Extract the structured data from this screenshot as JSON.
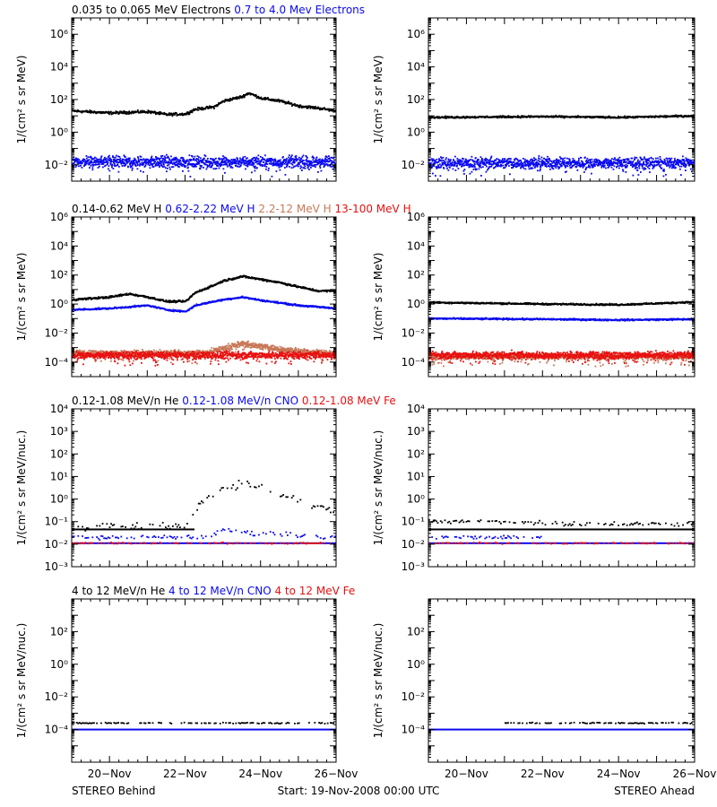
{
  "colors": {
    "black": "#000000",
    "blue": "#0a0af0",
    "tan": "#c87858",
    "red": "#e81010"
  },
  "footer": {
    "left": "STEREO Behind",
    "center": "Start: 19-Nov-2008 00:00 UTC",
    "right": "STEREO Ahead"
  },
  "chart_data": [
    {
      "type": "scatter",
      "panel": "electrons",
      "spacecraft": "STEREO Behind",
      "ylabel": "1/(cm² s sr MeV)",
      "yscale": "log",
      "ylim": [
        0.001,
        10000000
      ],
      "yticks": [
        {
          "v": 0.01,
          "label": "10⁻²"
        },
        {
          "v": 1,
          "label": "10⁰"
        },
        {
          "v": 100,
          "label": "10²"
        },
        {
          "v": 10000,
          "label": "10⁴"
        },
        {
          "v": 1000000,
          "label": "10⁶"
        }
      ],
      "xlim": [
        "2008-11-19",
        "2008-11-26"
      ],
      "legend": [
        {
          "text": "0.035 to 0.065 MeV Electrons",
          "color": "#000000"
        },
        {
          "text": "0.7 to 4.0 Mev Electrons",
          "color": "#0a0af0"
        }
      ],
      "series": [
        {
          "color": "#000000",
          "style": "dense",
          "spread": 0.12,
          "points": [
            [
              "2008-11-19",
              20
            ],
            [
              "2008-11-20",
              15
            ],
            [
              "2008-11-21",
              18
            ],
            [
              "2008-11-21 12:00",
              12
            ],
            [
              "2008-11-22",
              13
            ],
            [
              "2008-11-22 06:00",
              25
            ],
            [
              "2008-11-22 18:00",
              35
            ],
            [
              "2008-11-23",
              80
            ],
            [
              "2008-11-23 12:00",
              150
            ],
            [
              "2008-11-23 16:00",
              250
            ],
            [
              "2008-11-24",
              120
            ],
            [
              "2008-11-24 12:00",
              80
            ],
            [
              "2008-11-25",
              40
            ],
            [
              "2008-11-25 12:00",
              30
            ],
            [
              "2008-11-26",
              20
            ]
          ]
        },
        {
          "color": "#0a0af0",
          "style": "noisy",
          "spread": 0.5,
          "points": [
            [
              "2008-11-19",
              0.015
            ],
            [
              "2008-11-26",
              0.015
            ]
          ]
        }
      ]
    },
    {
      "type": "scatter",
      "panel": "electrons",
      "spacecraft": "STEREO Ahead",
      "ylabel": "1/(cm² s sr MeV)",
      "yscale": "log",
      "ylim": [
        0.001,
        10000000
      ],
      "yticks": [
        {
          "v": 0.01,
          "label": "10⁻²"
        },
        {
          "v": 1,
          "label": "10⁰"
        },
        {
          "v": 100,
          "label": "10²"
        },
        {
          "v": 10000,
          "label": "10⁴"
        },
        {
          "v": 1000000,
          "label": "10⁶"
        }
      ],
      "xlim": [
        "2008-11-19",
        "2008-11-26"
      ],
      "legend": [],
      "series": [
        {
          "color": "#000000",
          "style": "dense",
          "spread": 0.08,
          "points": [
            [
              "2008-11-19",
              8
            ],
            [
              "2008-11-22",
              9
            ],
            [
              "2008-11-24",
              8
            ],
            [
              "2008-11-26",
              10
            ]
          ]
        },
        {
          "color": "#0a0af0",
          "style": "noisy",
          "spread": 0.5,
          "points": [
            [
              "2008-11-19",
              0.013
            ],
            [
              "2008-11-26",
              0.013
            ]
          ]
        }
      ]
    },
    {
      "type": "scatter",
      "panel": "protons",
      "spacecraft": "STEREO Behind",
      "ylabel": "1/(cm² s sr MeV)",
      "yscale": "log",
      "ylim": [
        1e-05,
        1000000
      ],
      "yticks": [
        {
          "v": 0.0001,
          "label": "10⁻⁴"
        },
        {
          "v": 0.01,
          "label": "10⁻²"
        },
        {
          "v": 1,
          "label": "10⁰"
        },
        {
          "v": 100,
          "label": "10²"
        },
        {
          "v": 10000,
          "label": "10⁴"
        },
        {
          "v": 1000000,
          "label": "10⁶"
        }
      ],
      "xlim": [
        "2008-11-19",
        "2008-11-26"
      ],
      "legend": [
        {
          "text": "0.14-0.62 MeV H",
          "color": "#000000"
        },
        {
          "text": "0.62-2.22 MeV H",
          "color": "#0a0af0"
        },
        {
          "text": "2.2-12 MeV H",
          "color": "#c87858"
        },
        {
          "text": "13-100 MeV H",
          "color": "#e81010"
        }
      ],
      "series": [
        {
          "color": "#000000",
          "style": "dense",
          "spread": 0.1,
          "points": [
            [
              "2008-11-19",
              2
            ],
            [
              "2008-11-20",
              3
            ],
            [
              "2008-11-20 12:00",
              5
            ],
            [
              "2008-11-21",
              3
            ],
            [
              "2008-11-21 12:00",
              1.5
            ],
            [
              "2008-11-22",
              1.5
            ],
            [
              "2008-11-22 06:00",
              6
            ],
            [
              "2008-11-22 18:00",
              20
            ],
            [
              "2008-11-23",
              40
            ],
            [
              "2008-11-23 12:00",
              80
            ],
            [
              "2008-11-24",
              50
            ],
            [
              "2008-11-24 12:00",
              30
            ],
            [
              "2008-11-25",
              15
            ],
            [
              "2008-11-25 12:00",
              8
            ],
            [
              "2008-11-26",
              8
            ]
          ]
        },
        {
          "color": "#0a0af0",
          "style": "dense",
          "spread": 0.08,
          "points": [
            [
              "2008-11-19",
              0.4
            ],
            [
              "2008-11-20",
              0.5
            ],
            [
              "2008-11-21",
              0.8
            ],
            [
              "2008-11-21 12:00",
              0.4
            ],
            [
              "2008-11-22",
              0.3
            ],
            [
              "2008-11-22 06:00",
              0.8
            ],
            [
              "2008-11-22 18:00",
              1.5
            ],
            [
              "2008-11-23",
              2
            ],
            [
              "2008-11-23 12:00",
              3
            ],
            [
              "2008-11-24",
              1.8
            ],
            [
              "2008-11-25",
              0.8
            ],
            [
              "2008-11-26",
              0.5
            ]
          ]
        },
        {
          "color": "#c87858",
          "style": "noisy",
          "spread": 0.3,
          "points": [
            [
              "2008-11-19",
              0.0004
            ],
            [
              "2008-11-22 12:00",
              0.0004
            ],
            [
              "2008-11-23",
              0.0009
            ],
            [
              "2008-11-23 12:00",
              0.0018
            ],
            [
              "2008-11-24",
              0.0012
            ],
            [
              "2008-11-24 12:00",
              0.0008
            ],
            [
              "2008-11-25",
              0.0005
            ],
            [
              "2008-11-26",
              0.0004
            ]
          ]
        },
        {
          "color": "#e81010",
          "style": "noisy",
          "spread": 0.35,
          "points": [
            [
              "2008-11-19",
              0.0003
            ],
            [
              "2008-11-26",
              0.0003
            ]
          ]
        }
      ]
    },
    {
      "type": "scatter",
      "panel": "protons",
      "spacecraft": "STEREO Ahead",
      "ylabel": "1/(cm² s sr MeV)",
      "yscale": "log",
      "ylim": [
        1e-05,
        1000000
      ],
      "yticks": [
        {
          "v": 0.0001,
          "label": "10⁻⁴"
        },
        {
          "v": 0.01,
          "label": "10⁻²"
        },
        {
          "v": 1,
          "label": "10⁰"
        },
        {
          "v": 100,
          "label": "10²"
        },
        {
          "v": 10000,
          "label": "10⁴"
        },
        {
          "v": 1000000,
          "label": "10⁶"
        }
      ],
      "xlim": [
        "2008-11-19",
        "2008-11-26"
      ],
      "legend": [],
      "series": [
        {
          "color": "#000000",
          "style": "dense",
          "spread": 0.08,
          "points": [
            [
              "2008-11-19",
              1.3
            ],
            [
              "2008-11-22",
              1
            ],
            [
              "2008-11-24",
              0.9
            ],
            [
              "2008-11-25",
              1.1
            ],
            [
              "2008-11-26",
              1.4
            ]
          ]
        },
        {
          "color": "#0a0af0",
          "style": "dense",
          "spread": 0.08,
          "points": [
            [
              "2008-11-19",
              0.1
            ],
            [
              "2008-11-22",
              0.09
            ],
            [
              "2008-11-24",
              0.08
            ],
            [
              "2008-11-26",
              0.09
            ]
          ]
        },
        {
          "color": "#c87858",
          "style": "noisy",
          "spread": 0.3,
          "points": [
            [
              "2008-11-19",
              0.00025
            ],
            [
              "2008-11-26",
              0.00025
            ]
          ]
        },
        {
          "color": "#e81010",
          "style": "noisy",
          "spread": 0.35,
          "points": [
            [
              "2008-11-19",
              0.0003
            ],
            [
              "2008-11-26",
              0.0003
            ]
          ]
        }
      ]
    },
    {
      "type": "scatter",
      "panel": "heavy-low",
      "spacecraft": "STEREO Behind",
      "ylabel": "1/(cm² s sr MeV/nuc.)",
      "yscale": "log",
      "ylim": [
        0.001,
        10000
      ],
      "yticks": [
        {
          "v": 0.001,
          "label": "10⁻³"
        },
        {
          "v": 0.01,
          "label": "10⁻²"
        },
        {
          "v": 0.1,
          "label": "10⁻¹"
        },
        {
          "v": 1,
          "label": "10⁰"
        },
        {
          "v": 10,
          "label": "10¹"
        },
        {
          "v": 100,
          "label": "10²"
        },
        {
          "v": 1000,
          "label": "10³"
        },
        {
          "v": 10000,
          "label": "10⁴"
        }
      ],
      "xlim": [
        "2008-11-19",
        "2008-11-26"
      ],
      "legend": [
        {
          "text": "0.12-1.08 MeV/n He",
          "color": "#000000"
        },
        {
          "text": "0.12-1.08 MeV/n CNO",
          "color": "#0a0af0"
        },
        {
          "text": "0.12-1.08 MeV Fe",
          "color": "#e81010"
        }
      ],
      "series": [
        {
          "color": "#000000",
          "style": "sparse",
          "spread": 0.25,
          "points": [
            [
              "2008-11-19",
              0.06
            ],
            [
              "2008-11-22",
              0.07
            ],
            [
              "2008-11-22 06:00",
              0.3
            ],
            [
              "2008-11-22 12:00",
              1.2
            ],
            [
              "2008-11-23",
              2.5
            ],
            [
              "2008-11-23 12:00",
              5
            ],
            [
              "2008-11-24",
              3
            ],
            [
              "2008-11-24 12:00",
              1.5
            ],
            [
              "2008-11-25",
              0.8
            ],
            [
              "2008-11-25 12:00",
              0.5
            ],
            [
              "2008-11-26",
              0.3
            ]
          ]
        },
        {
          "color": "#000000",
          "style": "flat",
          "points": [
            [
              "2008-11-19",
              0.045
            ],
            [
              "2008-11-22 06:00",
              0.045
            ]
          ]
        },
        {
          "color": "#0a0af0",
          "style": "sparse",
          "spread": 0.15,
          "points": [
            [
              "2008-11-19",
              0.02
            ],
            [
              "2008-11-22 12:00",
              0.02
            ],
            [
              "2008-11-23",
              0.04
            ],
            [
              "2008-11-24",
              0.03
            ],
            [
              "2008-11-26",
              0.02
            ]
          ]
        },
        {
          "color": "#0a0af0",
          "style": "flat",
          "points": [
            [
              "2008-11-19",
              0.011
            ],
            [
              "2008-11-26",
              0.011
            ]
          ]
        },
        {
          "color": "#e81010",
          "style": "sparse",
          "spread": 0.05,
          "points": [
            [
              "2008-11-19",
              0.011
            ],
            [
              "2008-11-26",
              0.011
            ]
          ]
        }
      ]
    },
    {
      "type": "scatter",
      "panel": "heavy-low",
      "spacecraft": "STEREO Ahead",
      "ylabel": "1/(cm² s sr MeV/nuc.)",
      "yscale": "log",
      "ylim": [
        0.001,
        10000
      ],
      "yticks": [
        {
          "v": 0.001,
          "label": "10⁻³"
        },
        {
          "v": 0.01,
          "label": "10⁻²"
        },
        {
          "v": 0.1,
          "label": "10⁻¹"
        },
        {
          "v": 1,
          "label": "10⁰"
        },
        {
          "v": 10,
          "label": "10¹"
        },
        {
          "v": 100,
          "label": "10²"
        },
        {
          "v": 1000,
          "label": "10³"
        },
        {
          "v": 10000,
          "label": "10⁴"
        }
      ],
      "xlim": [
        "2008-11-19",
        "2008-11-26"
      ],
      "legend": [],
      "series": [
        {
          "color": "#000000",
          "style": "sparse",
          "spread": 0.15,
          "points": [
            [
              "2008-11-19",
              0.1
            ],
            [
              "2008-11-21",
              0.1
            ],
            [
              "2008-11-23",
              0.08
            ],
            [
              "2008-11-26",
              0.08
            ]
          ]
        },
        {
          "color": "#000000",
          "style": "flat",
          "points": [
            [
              "2008-11-19",
              0.045
            ],
            [
              "2008-11-26",
              0.045
            ]
          ]
        },
        {
          "color": "#0a0af0",
          "style": "sparse",
          "spread": 0.1,
          "points": [
            [
              "2008-11-19",
              0.02
            ],
            [
              "2008-11-22",
              0.02
            ]
          ]
        },
        {
          "color": "#0a0af0",
          "style": "flat",
          "points": [
            [
              "2008-11-19",
              0.011
            ],
            [
              "2008-11-26",
              0.011
            ]
          ]
        },
        {
          "color": "#e81010",
          "style": "sparse",
          "spread": 0.05,
          "points": [
            [
              "2008-11-19",
              0.011
            ],
            [
              "2008-11-26",
              0.011
            ]
          ]
        }
      ]
    },
    {
      "type": "scatter",
      "panel": "heavy-high",
      "spacecraft": "STEREO Behind",
      "ylabel": "1/(cm² s sr MeV/nuc.)",
      "yscale": "log",
      "ylim": [
        1e-06,
        10000
      ],
      "yticks": [
        {
          "v": 0.0001,
          "label": "10⁻⁴"
        },
        {
          "v": 0.01,
          "label": "10⁻²"
        },
        {
          "v": 1,
          "label": "10⁰"
        },
        {
          "v": 100,
          "label": "10²"
        }
      ],
      "xlim": [
        "2008-11-19",
        "2008-11-26"
      ],
      "legend": [
        {
          "text": "4 to 12 MeV/n He",
          "color": "#000000"
        },
        {
          "text": "4 to 12 MeV/n CNO",
          "color": "#0a0af0"
        },
        {
          "text": "4 to 12 MeV Fe",
          "color": "#e81010"
        }
      ],
      "series": [
        {
          "color": "#000000",
          "style": "sparse",
          "spread": 0.05,
          "points": [
            [
              "2008-11-19",
              0.00025
            ],
            [
              "2008-11-26",
              0.00025
            ]
          ]
        },
        {
          "color": "#0a0af0",
          "style": "flat",
          "points": [
            [
              "2008-11-19",
              0.0001
            ],
            [
              "2008-11-26",
              0.0001
            ]
          ]
        }
      ]
    },
    {
      "type": "scatter",
      "panel": "heavy-high",
      "spacecraft": "STEREO Ahead",
      "ylabel": "1/(cm² s sr MeV/nuc.)",
      "yscale": "log",
      "ylim": [
        1e-06,
        10000
      ],
      "yticks": [
        {
          "v": 0.0001,
          "label": "10⁻⁴"
        },
        {
          "v": 0.01,
          "label": "10⁻²"
        },
        {
          "v": 1,
          "label": "10⁰"
        },
        {
          "v": 100,
          "label": "10²"
        }
      ],
      "xlim": [
        "2008-11-19",
        "2008-11-26"
      ],
      "legend": [],
      "series": [
        {
          "color": "#000000",
          "style": "sparse",
          "spread": 0.05,
          "points": [
            [
              "2008-11-21",
              0.00025
            ],
            [
              "2008-11-26",
              0.00025
            ]
          ]
        },
        {
          "color": "#0a0af0",
          "style": "flat",
          "points": [
            [
              "2008-11-19",
              0.0001
            ],
            [
              "2008-11-26",
              0.0001
            ]
          ]
        }
      ]
    }
  ],
  "xaxis": {
    "ticks": [
      {
        "v": "2008-11-20",
        "label": "20−Nov"
      },
      {
        "v": "2008-11-22",
        "label": "22−Nov"
      },
      {
        "v": "2008-11-24",
        "label": "24−Nov"
      },
      {
        "v": "2008-11-26",
        "label": "26−Nov"
      }
    ]
  }
}
